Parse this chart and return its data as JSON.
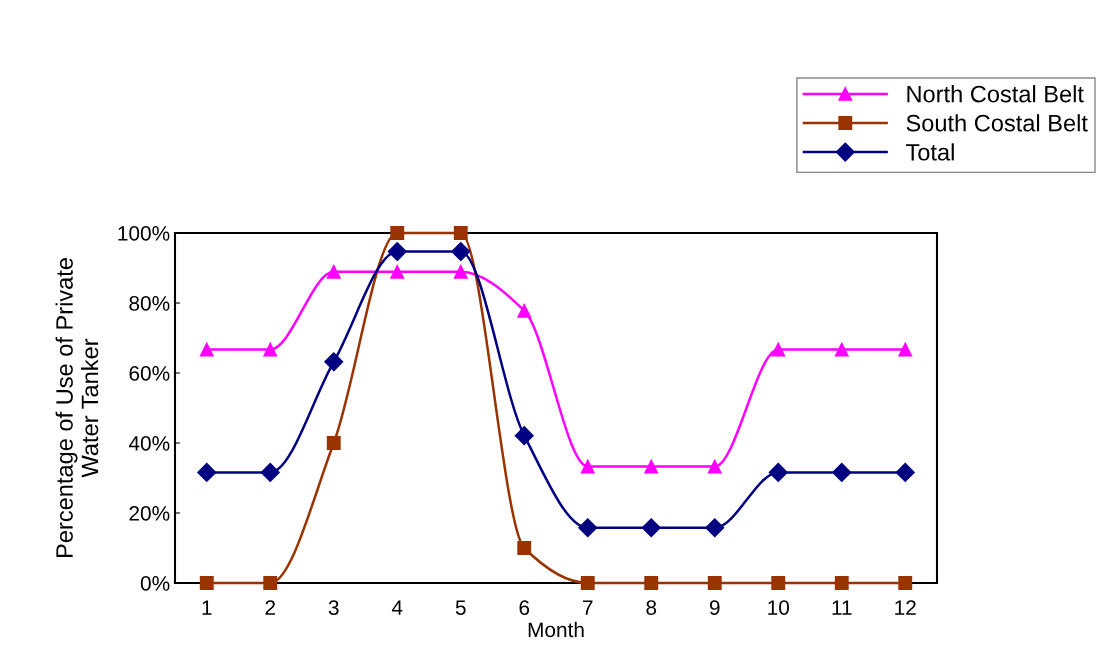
{
  "chart_data": {
    "type": "line",
    "xlabel": "Month",
    "ylabel": "Percentage of Use of Private\nWater Tanker",
    "categories": [
      "1",
      "2",
      "3",
      "4",
      "5",
      "6",
      "7",
      "8",
      "9",
      "10",
      "11",
      "12"
    ],
    "series": [
      {
        "name": "North Costal Belt",
        "color": "#ff00ff",
        "marker": "triangle",
        "values": [
          66.7,
          66.7,
          88.9,
          88.9,
          88.9,
          77.8,
          33.3,
          33.3,
          33.3,
          66.7,
          66.7,
          66.7
        ]
      },
      {
        "name": "South Costal Belt",
        "color": "#993300",
        "marker": "square",
        "values": [
          0,
          0,
          40,
          100,
          100,
          10,
          0,
          0,
          0,
          0,
          0,
          0
        ]
      },
      {
        "name": "Total",
        "color": "#000080",
        "marker": "diamond",
        "values": [
          31.6,
          31.6,
          63.2,
          94.7,
          94.7,
          42.1,
          15.8,
          15.8,
          15.8,
          31.6,
          31.6,
          31.6
        ]
      }
    ],
    "ylim": [
      0,
      100
    ],
    "yticks": [
      {
        "value": 0,
        "label": "0%"
      },
      {
        "value": 20,
        "label": "20%"
      },
      {
        "value": 40,
        "label": "40%"
      },
      {
        "value": 60,
        "label": "60%"
      },
      {
        "value": 80,
        "label": "80%"
      },
      {
        "value": 100,
        "label": "100%"
      }
    ],
    "legend": "top right",
    "line_style": "solid"
  }
}
